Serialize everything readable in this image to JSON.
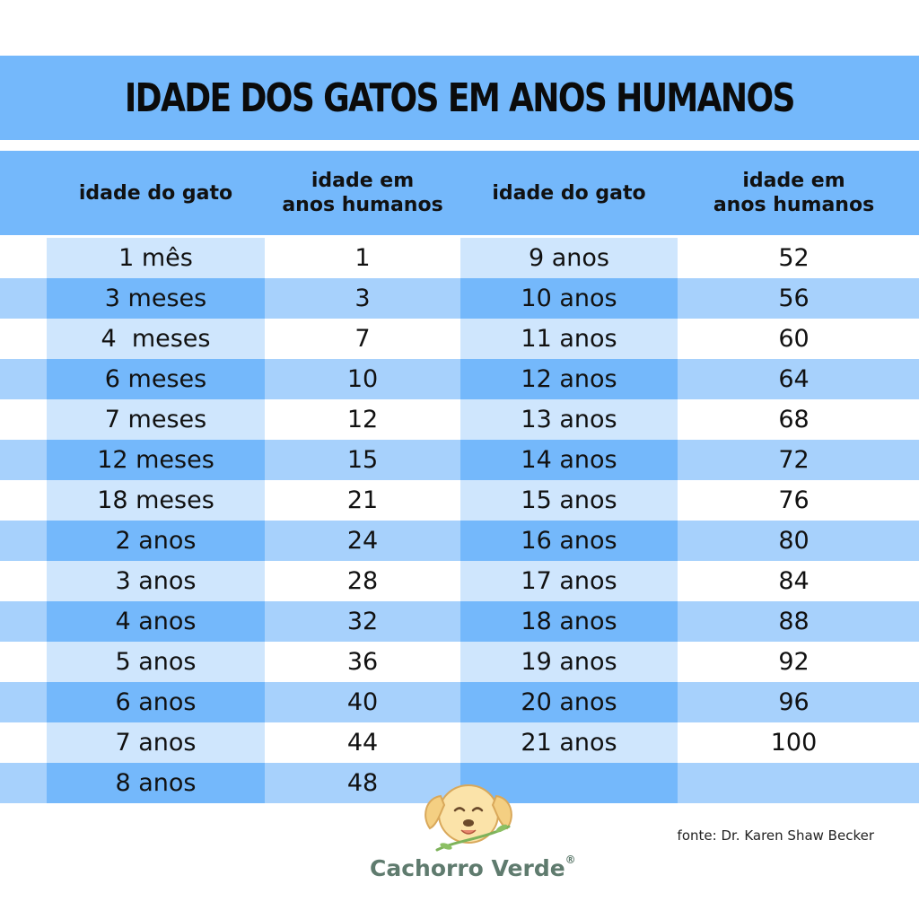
{
  "title": "IDADE DOS GATOS EM ANOS HUMANOS",
  "headers": {
    "left_age": "idade do gato",
    "left_human_line1": "idade em",
    "left_human_line2": "anos humanos",
    "right_age": "idade do gato",
    "right_human_line1": "idade em",
    "right_human_line2": "anos humanos"
  },
  "left_rows": [
    {
      "age": "1 mês",
      "human": "1"
    },
    {
      "age": "3 meses",
      "human": "3"
    },
    {
      "age": "4  meses",
      "human": "7"
    },
    {
      "age": "6 meses",
      "human": "10"
    },
    {
      "age": "7 meses",
      "human": "12"
    },
    {
      "age": "12 meses",
      "human": "15"
    },
    {
      "age": "18 meses",
      "human": "21"
    },
    {
      "age": "2 anos",
      "human": "24"
    },
    {
      "age": "3 anos",
      "human": "28"
    },
    {
      "age": "4 anos",
      "human": "32"
    },
    {
      "age": "5 anos",
      "human": "36"
    },
    {
      "age": "6 anos",
      "human": "40"
    },
    {
      "age": "7 anos",
      "human": "44"
    },
    {
      "age": "8 anos",
      "human": "48"
    }
  ],
  "right_rows": [
    {
      "age": "9 anos",
      "human": "52"
    },
    {
      "age": "10 anos",
      "human": "56"
    },
    {
      "age": "11 anos",
      "human": "60"
    },
    {
      "age": "12 anos",
      "human": "64"
    },
    {
      "age": "13 anos",
      "human": "68"
    },
    {
      "age": "14 anos",
      "human": "72"
    },
    {
      "age": "15 anos",
      "human": "76"
    },
    {
      "age": "16 anos",
      "human": "80"
    },
    {
      "age": "17 anos",
      "human": "84"
    },
    {
      "age": "18 anos",
      "human": "88"
    },
    {
      "age": "19 anos",
      "human": "92"
    },
    {
      "age": "20 anos",
      "human": "96"
    },
    {
      "age": "21 anos",
      "human": "100"
    },
    {
      "age": "",
      "human": ""
    }
  ],
  "source": "fonte: Dr. Karen Shaw Becker",
  "brand": "Cachorro Verde",
  "brand_mark": "®",
  "logo_icon": "dog-face-icon",
  "colors": {
    "band": "#74b8fb",
    "light_cell": "#cfe6fd",
    "mid_cell": "#a7d1fc",
    "white": "#ffffff",
    "brand_text": "#5f7b6e"
  }
}
